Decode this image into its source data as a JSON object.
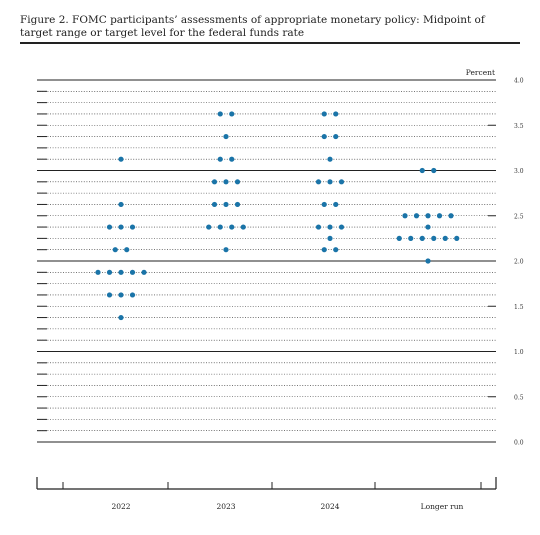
{
  "figure_title": "Figure 2.  FOMC participants’ assessments of appropriate monetary policy:  Midpoint of target range or target level for the federal funds rate",
  "chart_data": {
    "type": "scatter",
    "title": "Figure 2.  FOMC participants’ assessments of appropriate monetary policy:  Midpoint of target range or target level for the federal funds rate",
    "unit_label": "Percent",
    "categories": [
      "2022",
      "2023",
      "2024",
      "Longer run"
    ],
    "ylim": [
      0,
      4
    ],
    "y_ticks": [
      {
        "value": 0.0,
        "label": "0.0"
      },
      {
        "value": 0.5,
        "label": "0.5"
      },
      {
        "value": 1.0,
        "label": "1.0"
      },
      {
        "value": 1.5,
        "label": "1.5"
      },
      {
        "value": 2.0,
        "label": "2.0"
      },
      {
        "value": 2.5,
        "label": "2.5"
      },
      {
        "value": 3.0,
        "label": "3.0"
      },
      {
        "value": 3.5,
        "label": "3.5"
      },
      {
        "value": 4.0,
        "label": "4.0"
      }
    ],
    "grid_step": 0.125,
    "dot_color": "#1a74a8",
    "dots": [
      {
        "category": "2022",
        "values": [
          {
            "rate": 3.125,
            "count": 1
          },
          {
            "rate": 2.625,
            "count": 1
          },
          {
            "rate": 2.375,
            "count": 3
          },
          {
            "rate": 2.125,
            "count": 2
          },
          {
            "rate": 1.875,
            "count": 5
          },
          {
            "rate": 1.625,
            "count": 3
          },
          {
            "rate": 1.375,
            "count": 1
          }
        ]
      },
      {
        "category": "2023",
        "values": [
          {
            "rate": 3.625,
            "count": 2
          },
          {
            "rate": 3.375,
            "count": 1
          },
          {
            "rate": 3.125,
            "count": 2
          },
          {
            "rate": 2.875,
            "count": 3
          },
          {
            "rate": 2.625,
            "count": 3
          },
          {
            "rate": 2.375,
            "count": 4
          },
          {
            "rate": 2.125,
            "count": 1
          }
        ]
      },
      {
        "category": "2024",
        "values": [
          {
            "rate": 3.625,
            "count": 2
          },
          {
            "rate": 3.375,
            "count": 2
          },
          {
            "rate": 3.125,
            "count": 1
          },
          {
            "rate": 2.875,
            "count": 3
          },
          {
            "rate": 2.625,
            "count": 2
          },
          {
            "rate": 2.375,
            "count": 3
          },
          {
            "rate": 2.25,
            "count": 1
          },
          {
            "rate": 2.125,
            "count": 2
          }
        ]
      },
      {
        "category": "Longer run",
        "values": [
          {
            "rate": 3.0,
            "count": 2
          },
          {
            "rate": 2.5,
            "count": 5
          },
          {
            "rate": 2.375,
            "count": 1
          },
          {
            "rate": 2.25,
            "count": 6
          },
          {
            "rate": 2.0,
            "count": 1
          }
        ]
      }
    ]
  }
}
